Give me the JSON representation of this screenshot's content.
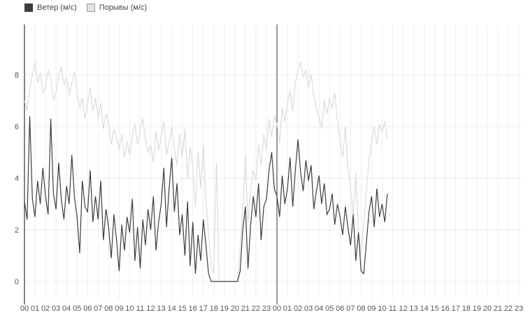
{
  "legend": {
    "items": [
      {
        "label": "Ветер (м/с)",
        "swatch_fill": "#3d3d3d",
        "swatch_border": "#3d3d3d"
      },
      {
        "label": "Порывы (м/с)",
        "swatch_fill": "#e2e2e2",
        "swatch_border": "#999999"
      }
    ]
  },
  "chart_data": {
    "type": "line",
    "title": "",
    "xlabel": "",
    "ylabel": "",
    "x_unit": "hour of day",
    "y_unit": "м/с",
    "xlim_hours": [
      0,
      48
    ],
    "ylim": [
      0,
      10
    ],
    "y_ticks": [
      0,
      2,
      4,
      6,
      8
    ],
    "y_tick_labels": [
      "0",
      "2",
      "4",
      "6",
      "8"
    ],
    "x_tick_labels": [
      "00",
      "01",
      "02",
      "03",
      "04",
      "05",
      "06",
      "07",
      "08",
      "09",
      "10",
      "11",
      "12",
      "13",
      "14",
      "15",
      "16",
      "17",
      "18",
      "19",
      "20",
      "21",
      "22",
      "23",
      "00",
      "01",
      "02",
      "03",
      "04",
      "05",
      "06",
      "07",
      "08",
      "09",
      "10",
      "11",
      "12",
      "13",
      "14",
      "15",
      "16",
      "17",
      "18",
      "19",
      "20",
      "21",
      "22",
      "23"
    ],
    "day_separator_hour": 24,
    "grid": true,
    "legend_position": "top-left",
    "colors": {
      "wind_line": "#3d3d3d",
      "gusts_line": "#dcdcdc",
      "gridline": "#ededed",
      "axis_line": "#333333",
      "tick_text": "#555555"
    },
    "series": [
      {
        "name": "Ветер (м/с)",
        "color": "#3d3d3d",
        "start_hour": 0,
        "step_hours": 0.25,
        "values": [
          3.1,
          2.4,
          6.4,
          3.2,
          2.5,
          3.9,
          3.0,
          4.4,
          3.3,
          2.6,
          6.3,
          3.4,
          2.8,
          4.6,
          3.2,
          2.4,
          3.7,
          3.0,
          4.9,
          3.3,
          2.5,
          1.1,
          3.9,
          2.9,
          2.7,
          4.3,
          2.3,
          3.3,
          2.4,
          3.9,
          1.6,
          2.8,
          2.1,
          0.9,
          2.6,
          1.6,
          0.4,
          2.2,
          1.2,
          2.5,
          1.9,
          3.2,
          0.8,
          2.1,
          0.5,
          2.4,
          1.4,
          2.8,
          2.0,
          3.3,
          1.2,
          2.3,
          3.0,
          4.4,
          2.1,
          3.6,
          4.8,
          2.7,
          3.8,
          1.8,
          2.6,
          1.0,
          3.1,
          0.6,
          2.3,
          0.3,
          1.8,
          0.8,
          2.4,
          1.4,
          0.3,
          0.0,
          0.0,
          0.0,
          0.0,
          0.0,
          0.0,
          0.0,
          0.0,
          0.0,
          0.0,
          0.0,
          0.4,
          2.0,
          2.9,
          0.5,
          2.2,
          3.3,
          2.5,
          3.8,
          1.6,
          2.9,
          3.2,
          4.3,
          5.0,
          3.6,
          3.3,
          2.5,
          4.1,
          3.0,
          3.6,
          4.8,
          2.9,
          4.3,
          5.5,
          4.2,
          3.5,
          4.7,
          3.9,
          4.5,
          2.8,
          3.5,
          4.1,
          3.0,
          3.8,
          2.6,
          2.8,
          3.4,
          2.2,
          3.0,
          2.5,
          1.8,
          2.9,
          2.1,
          1.4,
          2.6,
          0.8,
          1.9,
          0.4,
          0.3,
          1.5,
          2.7,
          3.3,
          2.1,
          3.6,
          2.5,
          3.0,
          2.3,
          3.4
        ]
      },
      {
        "name": "Порывы (м/с)",
        "color": "#dcdcdc",
        "start_hour": 0,
        "step_hours": 0.25,
        "values": [
          7.0,
          6.6,
          7.4,
          8.0,
          8.5,
          7.7,
          8.1,
          7.3,
          7.5,
          8.2,
          7.8,
          7.0,
          7.3,
          8.0,
          8.3,
          7.6,
          7.9,
          7.2,
          7.7,
          8.1,
          7.4,
          6.7,
          7.1,
          6.3,
          6.9,
          7.5,
          6.6,
          7.1,
          6.3,
          6.9,
          5.9,
          6.5,
          6.1,
          5.3,
          5.9,
          5.6,
          5.1,
          5.7,
          4.8,
          5.4,
          4.9,
          5.6,
          6.1,
          5.3,
          5.9,
          6.3,
          5.5,
          5.0,
          5.3,
          4.6,
          5.8,
          5.1,
          5.6,
          6.2,
          4.9,
          5.4,
          6.0,
          5.2,
          4.5,
          5.7,
          4.8,
          5.9,
          4.0,
          5.2,
          4.4,
          2.9,
          5.0,
          3.6,
          5.3,
          3.1,
          1.9,
          0.6,
          0.3,
          4.6,
          0.0,
          0.0,
          0.0,
          0.0,
          0.0,
          0.0,
          0.0,
          0.0,
          1.3,
          2.7,
          4.9,
          2.3,
          3.6,
          4.3,
          3.9,
          5.3,
          4.5,
          5.7,
          5.1,
          6.3,
          5.6,
          6.4,
          6.1,
          5.4,
          6.7,
          6.2,
          6.9,
          7.4,
          6.6,
          7.7,
          8.2,
          8.5,
          7.9,
          8.2,
          7.5,
          8.0,
          7.2,
          6.7,
          6.4,
          5.9,
          7.0,
          6.5,
          7.1,
          6.7,
          7.3,
          6.2,
          5.5,
          4.8,
          6.0,
          4.4,
          3.7,
          2.5,
          4.2,
          1.9,
          1.0,
          2.3,
          3.5,
          4.7,
          5.4,
          6.0,
          5.3,
          6.1,
          5.8,
          6.2,
          5.5
        ]
      }
    ]
  }
}
